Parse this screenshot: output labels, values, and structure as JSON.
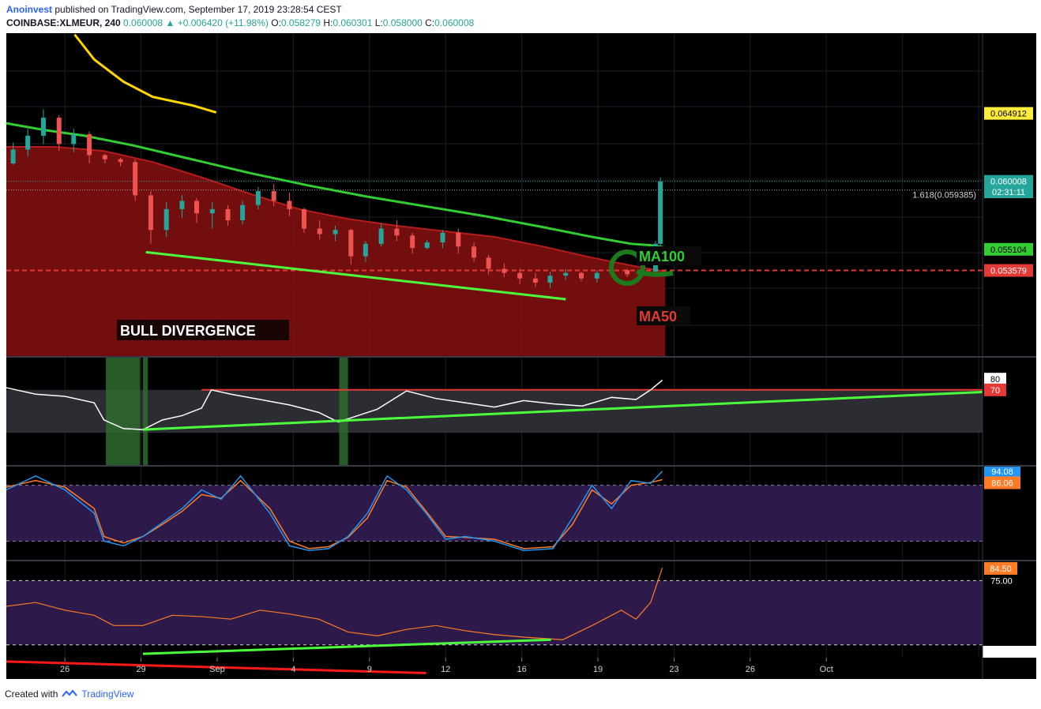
{
  "header": {
    "author": "Anoinvest",
    "published": "published on TradingView.com, September 17, 2019 23:28:54 CEST",
    "symbol": "COINBASE:XLMEUR, 240",
    "last": "0.060008",
    "arrow": "▲",
    "change": "+0.006420 (+11.98%)",
    "o_label": "O:",
    "o": "0.058279",
    "h_label": "H:",
    "h": "0.060301",
    "l_label": "L:",
    "l": "0.058000",
    "c_label": "C:",
    "c": "0.060008"
  },
  "footer": {
    "created_with": "Created with",
    "brand": "TradingView",
    "logo_icon": "tradingview-logo-icon"
  },
  "colors": {
    "up": "#26a69a",
    "down": "#ef5350",
    "ma100": "#32cd32",
    "ma50": "#c62828",
    "ma200": "#ffd600",
    "trend": "#4cff3c",
    "rsi_line": "#ffffff",
    "stoch_k": "#2196f3",
    "stoch_d": "#ff7b25",
    "osc": "#ff7b25",
    "red_line": "#e53935"
  },
  "chart_data": [
    {
      "type": "candlestick",
      "title": "COINBASE:XLMEUR, 240",
      "ylim": [
        0.0474,
        0.0707
      ],
      "x_tick_labels": [
        "26",
        "29",
        "Sep",
        "4",
        "9",
        "12",
        "16",
        "19",
        "23",
        "26",
        "Oct"
      ],
      "price_labels": [
        {
          "text": "0.064912",
          "value": 0.064912,
          "bg": "#ffeb3b",
          "fg": "#000000"
        },
        {
          "text": "0.060008",
          "value": 0.060008,
          "bg": "#26a69a",
          "fg": "#ffffff"
        },
        {
          "text": "02:31:11",
          "value": 0.05925,
          "bg": "#26a69a",
          "fg": "#ffffff"
        },
        {
          "text": "0.055104",
          "value": 0.055104,
          "bg": "#32cd32",
          "fg": "#000000"
        },
        {
          "text": "0.053579",
          "value": 0.053579,
          "bg": "#e53935",
          "fg": "#ffffff"
        }
      ],
      "fib_label": "1.618(0.059385)",
      "fib_value": 0.059385,
      "support_level": 0.053579,
      "annotations": [
        "BULL DIVERGENCE",
        "MA100",
        "MA50"
      ],
      "ma200": [
        [
          0.07,
          0.0706
        ],
        [
          0.09,
          0.0688
        ],
        [
          0.12,
          0.0672
        ],
        [
          0.15,
          0.0661
        ],
        [
          0.19,
          0.0655
        ],
        [
          0.215,
          0.06498
        ]
      ],
      "ma100": [
        [
          0,
          0.0642
        ],
        [
          0.04,
          0.0637
        ],
        [
          0.08,
          0.0633
        ],
        [
          0.13,
          0.0626
        ],
        [
          0.19,
          0.0616
        ],
        [
          0.25,
          0.0606
        ],
        [
          0.31,
          0.0597
        ],
        [
          0.37,
          0.0589
        ],
        [
          0.43,
          0.0582
        ],
        [
          0.49,
          0.0575
        ],
        [
          0.55,
          0.0567
        ],
        [
          0.6,
          0.056
        ],
        [
          0.64,
          0.0555
        ],
        [
          0.66,
          0.0554
        ],
        [
          0.675,
          0.05523
        ]
      ],
      "ma50_fill": [
        [
          0,
          0.0625
        ],
        [
          0.05,
          0.0625
        ],
        [
          0.1,
          0.0622
        ],
        [
          0.15,
          0.0614
        ],
        [
          0.2,
          0.0603
        ],
        [
          0.25,
          0.0591
        ],
        [
          0.3,
          0.058
        ],
        [
          0.35,
          0.0573
        ],
        [
          0.4,
          0.0568
        ],
        [
          0.45,
          0.0564
        ],
        [
          0.5,
          0.056
        ],
        [
          0.55,
          0.0553
        ],
        [
          0.6,
          0.0545
        ],
        [
          0.65,
          0.0538
        ],
        [
          0.675,
          0.0535
        ]
      ],
      "trendline": [
        [
          0.143,
          0.0549
        ],
        [
          0.573,
          0.0515
        ]
      ],
      "candle_x": [
        0.007,
        0.022,
        0.038,
        0.054,
        0.069,
        0.085,
        0.101,
        0.117,
        0.132,
        0.148,
        0.164,
        0.18,
        0.195,
        0.211,
        0.227,
        0.242,
        0.258,
        0.274,
        0.29,
        0.305,
        0.321,
        0.337,
        0.353,
        0.368,
        0.384,
        0.4,
        0.416,
        0.431,
        0.447,
        0.463,
        0.479,
        0.494,
        0.51,
        0.526,
        0.542,
        0.557,
        0.573,
        0.589,
        0.605,
        0.62,
        0.636,
        0.652,
        0.665,
        0.67
      ],
      "candles": [
        [
          0.0613,
          0.0628,
          0.0612,
          0.0623
        ],
        [
          0.0623,
          0.0638,
          0.0618,
          0.0633
        ],
        [
          0.0633,
          0.0652,
          0.0627,
          0.0646
        ],
        [
          0.0646,
          0.0648,
          0.0622,
          0.0627
        ],
        [
          0.0627,
          0.0638,
          0.0621,
          0.0634
        ],
        [
          0.0634,
          0.0636,
          0.0613,
          0.0619
        ],
        [
          0.0619,
          0.062,
          0.0613,
          0.0616
        ],
        [
          0.0616,
          0.0617,
          0.0611,
          0.0614
        ],
        [
          0.0614,
          0.0616,
          0.0586,
          0.059
        ],
        [
          0.059,
          0.0593,
          0.0555,
          0.0565
        ],
        [
          0.0565,
          0.0585,
          0.056,
          0.058
        ],
        [
          0.058,
          0.059,
          0.0574,
          0.0586
        ],
        [
          0.0586,
          0.0588,
          0.057,
          0.0577
        ],
        [
          0.0577,
          0.0585,
          0.0566,
          0.058
        ],
        [
          0.058,
          0.0583,
          0.0568,
          0.0572
        ],
        [
          0.0572,
          0.0586,
          0.0569,
          0.0583
        ],
        [
          0.0583,
          0.0596,
          0.058,
          0.0593
        ],
        [
          0.0593,
          0.0598,
          0.0582,
          0.0586
        ],
        [
          0.0586,
          0.0592,
          0.0575,
          0.058
        ],
        [
          0.058,
          0.0581,
          0.0563,
          0.0566
        ],
        [
          0.0566,
          0.0572,
          0.0558,
          0.0562
        ],
        [
          0.0562,
          0.0568,
          0.0557,
          0.0565
        ],
        [
          0.0565,
          0.0566,
          0.054,
          0.0546
        ],
        [
          0.0546,
          0.0557,
          0.0542,
          0.0555
        ],
        [
          0.0555,
          0.057,
          0.0553,
          0.0566
        ],
        [
          0.0566,
          0.0572,
          0.0557,
          0.0561
        ],
        [
          0.0561,
          0.0563,
          0.0548,
          0.0552
        ],
        [
          0.0552,
          0.0558,
          0.0551,
          0.0556
        ],
        [
          0.0556,
          0.0565,
          0.0552,
          0.0563
        ],
        [
          0.0563,
          0.0566,
          0.0548,
          0.0553
        ],
        [
          0.0553,
          0.0556,
          0.0542,
          0.0545
        ],
        [
          0.0545,
          0.0547,
          0.0533,
          0.0537
        ],
        [
          0.0537,
          0.0541,
          0.0531,
          0.0534
        ],
        [
          0.0534,
          0.0537,
          0.0526,
          0.053
        ],
        [
          0.053,
          0.0534,
          0.0524,
          0.0527
        ],
        [
          0.0527,
          0.0535,
          0.0523,
          0.0532
        ],
        [
          0.0532,
          0.0537,
          0.0529,
          0.0534
        ],
        [
          0.0534,
          0.0535,
          0.0528,
          0.053
        ],
        [
          0.053,
          0.0536,
          0.0527,
          0.0534
        ],
        [
          0.0534,
          0.0537,
          0.0531,
          0.0536
        ],
        [
          0.0536,
          0.0537,
          0.0531,
          0.0533
        ],
        [
          0.0533,
          0.0537,
          0.0532,
          0.0535
        ],
        [
          0.0535,
          0.0557,
          0.0531,
          0.0555
        ],
        [
          0.0555,
          0.0603,
          0.0553,
          0.06
        ]
      ]
    },
    {
      "type": "line",
      "name": "rsi",
      "ylim": [
        0,
        100
      ],
      "band": [
        30,
        70
      ],
      "tick_labels": [
        "80",
        "70"
      ],
      "resistance_level": 70,
      "highlight_zones": [
        [
          0.102,
          0.137
        ],
        [
          0.14,
          0.145
        ],
        [
          0.341,
          0.35
        ]
      ],
      "x": [
        0,
        0.03,
        0.06,
        0.09,
        0.1,
        0.12,
        0.14,
        0.16,
        0.18,
        0.2,
        0.21,
        0.23,
        0.26,
        0.29,
        0.32,
        0.34,
        0.36,
        0.38,
        0.41,
        0.44,
        0.47,
        0.5,
        0.53,
        0.56,
        0.59,
        0.62,
        0.645,
        0.66,
        0.672
      ],
      "values": [
        72,
        66,
        64,
        58,
        42,
        34,
        33,
        42,
        46,
        53,
        70,
        66,
        61,
        56,
        49,
        40,
        46,
        52,
        69,
        62,
        58,
        54,
        60,
        57,
        55,
        63,
        61,
        70,
        79
      ],
      "trendline": [
        [
          0.14,
          33
        ],
        [
          1.0,
          68
        ]
      ]
    },
    {
      "type": "line",
      "name": "stochastic",
      "ylim": [
        0,
        100
      ],
      "band": [
        20,
        80
      ],
      "tick_labels": [
        "94.08",
        "86.06"
      ],
      "x": [
        0,
        0.03,
        0.06,
        0.09,
        0.1,
        0.12,
        0.14,
        0.16,
        0.18,
        0.2,
        0.22,
        0.24,
        0.27,
        0.29,
        0.31,
        0.33,
        0.35,
        0.37,
        0.39,
        0.41,
        0.43,
        0.45,
        0.47,
        0.5,
        0.53,
        0.56,
        0.58,
        0.6,
        0.62,
        0.64,
        0.66,
        0.672
      ],
      "k": [
        75,
        90,
        75,
        50,
        20,
        15,
        25,
        40,
        55,
        75,
        65,
        90,
        50,
        15,
        10,
        12,
        25,
        50,
        90,
        75,
        50,
        22,
        25,
        20,
        10,
        12,
        45,
        80,
        55,
        85,
        82,
        95
      ],
      "d": [
        78,
        85,
        78,
        55,
        25,
        18,
        25,
        38,
        52,
        70,
        66,
        85,
        55,
        20,
        12,
        14,
        24,
        45,
        85,
        78,
        52,
        25,
        24,
        22,
        12,
        14,
        38,
        75,
        60,
        80,
        83,
        86
      ]
    },
    {
      "type": "line",
      "name": "oscillator",
      "ylim": [
        15,
        90
      ],
      "band": [
        25,
        75
      ],
      "tick_labels": [
        "84.50",
        "75.00"
      ],
      "x": [
        0,
        0.03,
        0.06,
        0.09,
        0.11,
        0.14,
        0.17,
        0.2,
        0.23,
        0.26,
        0.29,
        0.32,
        0.35,
        0.38,
        0.41,
        0.44,
        0.47,
        0.5,
        0.53,
        0.55,
        0.57,
        0.6,
        0.63,
        0.645,
        0.66,
        0.672
      ],
      "values": [
        55,
        58,
        52,
        48,
        40,
        40,
        48,
        47,
        45,
        52,
        49,
        45,
        35,
        32,
        37,
        40,
        36,
        33,
        31,
        30,
        29,
        40,
        52,
        45,
        58,
        85
      ],
      "green_trend": [
        [
          0.14,
          18
        ],
        [
          0.558,
          29
        ]
      ],
      "red_trend": [
        [
          0.0,
          12
        ],
        [
          0.43,
          3
        ]
      ]
    }
  ]
}
